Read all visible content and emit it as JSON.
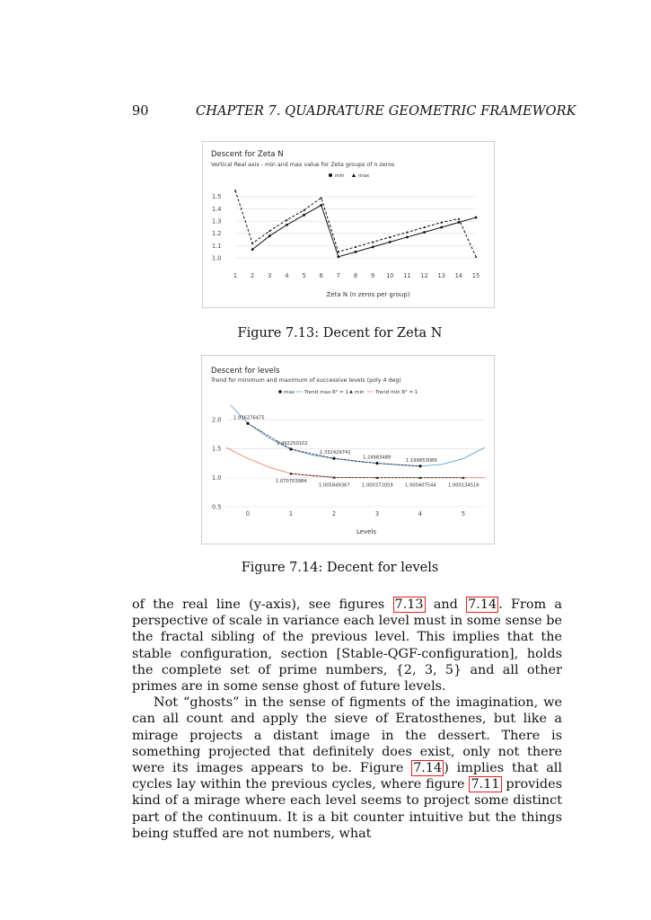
{
  "header": {
    "page_number": "90",
    "running_head": "CHAPTER 7.  QUADRATURE GEOMETRIC FRAMEWORK"
  },
  "figures": [
    {
      "caption": "Figure 7.13: Decent for Zeta N"
    },
    {
      "caption": "Figure 7.14: Decent for levels"
    }
  ],
  "chart_data": [
    {
      "type": "line",
      "title": "Descent for Zeta N",
      "subtitle": "Vertical Real axis - min and max value for Zeta groups of n zeros",
      "xlabel": "Zeta N (n zeros per group)",
      "ylabel": "",
      "legend_position": "top",
      "grid": true,
      "x": [
        1,
        2,
        3,
        4,
        5,
        6,
        7,
        8,
        9,
        10,
        11,
        12,
        13,
        14,
        15
      ],
      "xlim": [
        1,
        15
      ],
      "ylim": [
        0.95,
        1.55
      ],
      "yticks": [
        1.0,
        1.1,
        1.2,
        1.3,
        1.4,
        1.5
      ],
      "ytick_labels": [
        "1.0",
        "1.1",
        "1.2",
        "1.3",
        "1.4",
        "1.5"
      ],
      "xtick_labels": [
        "1",
        "2",
        "3",
        "4",
        "5",
        "6",
        "7",
        "8",
        "9",
        "10",
        "11",
        "12",
        "13",
        "14",
        "15"
      ],
      "series": [
        {
          "name": "min",
          "marker": "circle",
          "style": "solid",
          "color": "#111111",
          "x": [
            2,
            3,
            4,
            5,
            6,
            7,
            8,
            9,
            10,
            11,
            12,
            13,
            14,
            15
          ],
          "values": [
            1.07,
            1.18,
            1.27,
            1.35,
            1.43,
            1.01,
            1.05,
            1.09,
            1.13,
            1.17,
            1.21,
            1.25,
            1.29,
            1.33
          ]
        },
        {
          "name": "max",
          "marker": "triangle",
          "style": "dashed",
          "color": "#111111",
          "x": [
            1,
            2,
            3,
            4,
            5,
            6,
            7,
            8,
            9,
            10,
            11,
            12,
            13,
            14,
            15
          ],
          "values": [
            1.55,
            1.12,
            1.22,
            1.31,
            1.39,
            1.49,
            1.05,
            1.09,
            1.13,
            1.17,
            1.21,
            1.25,
            1.29,
            1.32,
            1.01
          ]
        }
      ]
    },
    {
      "type": "scatter",
      "title": "Descent for levels",
      "subtitle": "Trend for minimum and maximum of successive levels (poly 4 deg)",
      "xlabel": "Levels",
      "ylabel": "",
      "legend_position": "top",
      "grid": true,
      "xlim": [
        -0.5,
        5.5
      ],
      "ylim": [
        0.5,
        2.25
      ],
      "xticks": [
        0,
        1,
        2,
        3,
        4,
        5
      ],
      "xtick_labels": [
        "0",
        "1",
        "2",
        "3",
        "4",
        "5"
      ],
      "yticks": [
        0.5,
        1.0,
        1.5,
        2.0
      ],
      "ytick_labels": [
        "0.5",
        "1.0",
        "1.5",
        "2.0"
      ],
      "series": [
        {
          "name": "max",
          "marker": "circle",
          "color": "#111111",
          "x": [
            0,
            1,
            2,
            3,
            4
          ],
          "values": [
            1.936276475,
            1.492250102,
            1.332429741,
            1.24983489,
            1.199853089
          ],
          "labels": [
            "1.936276475",
            "1.492250102",
            "1.332429741",
            "1.24983489",
            "1.199853089"
          ]
        },
        {
          "name": "Trend max R² = 1",
          "style": "dashed-fit",
          "color": "#5b9bd5",
          "x": [
            -0.4,
            0,
            0.5,
            1,
            1.5,
            2,
            2.5,
            3,
            3.5,
            4,
            4.5,
            5,
            5.5
          ],
          "values": [
            2.25,
            1.94,
            1.68,
            1.49,
            1.39,
            1.33,
            1.28,
            1.25,
            1.22,
            1.2,
            1.23,
            1.33,
            1.52
          ]
        },
        {
          "name": "min",
          "marker": "triangle",
          "color": "#111111",
          "x": [
            1,
            2,
            3,
            4,
            5
          ],
          "values": [
            1.070703984,
            1.005849367,
            1.000372059,
            1.000407544,
            1.000134516
          ],
          "labels": [
            "1.070703984",
            "1.005849367",
            "1.000372059",
            "1.000407544",
            "1.000134516"
          ]
        },
        {
          "name": "Trend min R² = 1",
          "style": "dashed-fit",
          "color": "#e8826c",
          "x": [
            -0.5,
            0,
            0.5,
            1,
            1.5,
            2,
            2.5,
            3,
            3.5,
            4,
            4.5,
            5,
            5.5
          ],
          "values": [
            1.52,
            1.33,
            1.18,
            1.07,
            1.03,
            1.006,
            1.0,
            1.0,
            1.0,
            1.0,
            1.0,
            1.0,
            1.0
          ]
        }
      ]
    }
  ],
  "body": {
    "paragraphs": [
      {
        "runs": [
          {
            "t": "of the real line (y-axis), see figures "
          },
          {
            "t": "7.13",
            "ref": true
          },
          {
            "t": " and "
          },
          {
            "t": "7.14",
            "ref": true
          },
          {
            "t": ". From a perspective of scale in variance each level must in some sense be the fractal sibling of the previous level. This implies that the stable configuration, section [Stable-QGF-configuration], holds the complete set of prime numbers, {2, 3, 5} and all other primes are in some sense ghost of future levels."
          }
        ]
      },
      {
        "runs": [
          {
            "t": "Not “ghosts” in the sense of figments of the imagination, we can all count and apply the sieve of Eratosthenes, but like a mirage projects a distant image in the dessert. There is something projected that definitely does exist, only not there were its images appears to be. Figure "
          },
          {
            "t": "7.14",
            "ref": true
          },
          {
            "t": ") implies that all cycles lay within the previous cycles, where figure "
          },
          {
            "t": "7.11",
            "ref": true
          },
          {
            "t": " provides kind of a mirage where each level seems to project some distinct part of the continuum. It is a bit counter intuitive but the things being stuffed are not numbers, what"
          }
        ]
      }
    ]
  }
}
